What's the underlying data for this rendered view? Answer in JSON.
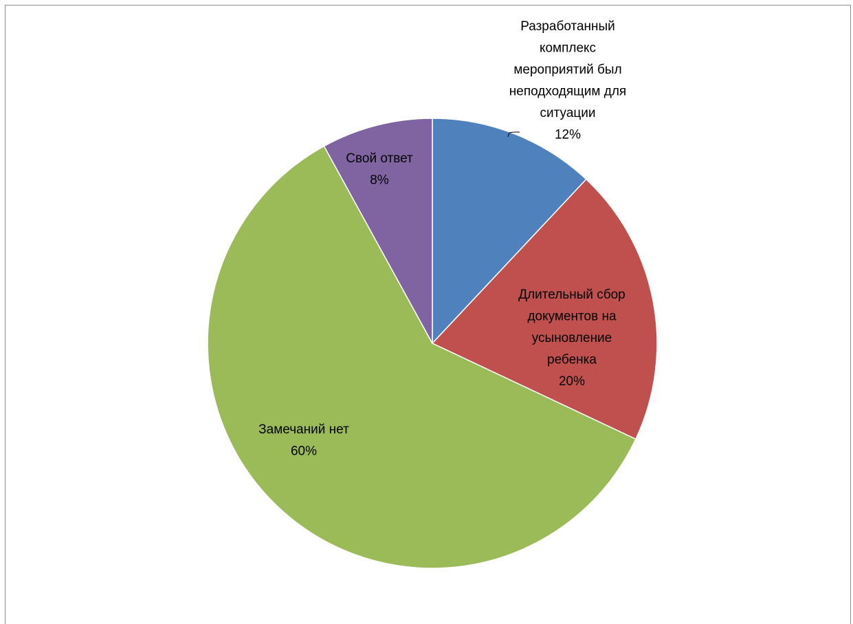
{
  "chart_data": {
    "type": "pie",
    "title": "",
    "slices": [
      {
        "label_lines": [
          "Разработанный",
          "комплекс",
          "мероприятий был",
          "неподходящим для",
          "ситуации"
        ],
        "percent_label": "12%",
        "value": 12,
        "color": "#4f81bd"
      },
      {
        "label_lines": [
          "Длительный сбор",
          "документов на",
          "усыновление",
          "ребенка"
        ],
        "percent_label": "20%",
        "value": 20,
        "color": "#c0504d"
      },
      {
        "label_lines": [
          "Замечаний нет"
        ],
        "percent_label": "60%",
        "value": 60,
        "color": "#9bbb59"
      },
      {
        "label_lines": [
          "Свой ответ"
        ],
        "percent_label": "8%",
        "value": 8,
        "color": "#8064a2"
      }
    ],
    "start_angle_deg": 0,
    "direction": "clockwise",
    "legend": "none",
    "data_labels": "category-and-percent"
  }
}
